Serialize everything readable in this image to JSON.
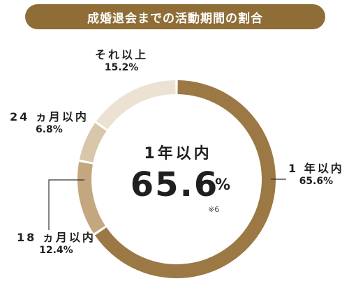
{
  "header": {
    "title": "成婚退会までの活動期間の割合"
  },
  "center": {
    "label": "1年以内",
    "value": "65.6",
    "unit": "%",
    "note": "※6"
  },
  "chart_data": {
    "type": "pie",
    "title": "成婚退会までの活動期間の割合",
    "categories": [
      "1年以内",
      "18ヵ月以内",
      "24ヵ月以内",
      "それ以上"
    ],
    "values": [
      65.6,
      12.4,
      6.8,
      15.2
    ],
    "unit": "%",
    "colors": [
      "#9b7844",
      "#c4a77e",
      "#d9c7ab",
      "#ebe2d4"
    ]
  },
  "labels": [
    {
      "name": "1 年以内",
      "pct": "65.6%"
    },
    {
      "name": "18 ヵ月以内",
      "pct": "12.4%"
    },
    {
      "name": "24 ヵ月以内",
      "pct": "6.8%"
    },
    {
      "name": "それ以上",
      "pct": "15.2%"
    }
  ]
}
